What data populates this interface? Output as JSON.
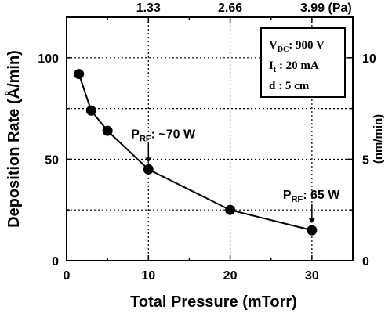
{
  "chart_data": {
    "type": "line",
    "xlabel": "Total Pressure (mTorr)",
    "ylabel": "Deposition Rate (Å/min)",
    "ylabel_right": "(nm/min)",
    "xlim": [
      0,
      35
    ],
    "ylim": [
      0,
      120
    ],
    "x_ticks": [
      0,
      10,
      20,
      30
    ],
    "y_ticks": [
      0,
      50,
      100
    ],
    "right_ticks": [
      0,
      5,
      10
    ],
    "top_ticks": [
      "1.33",
      "2.66",
      "3.99 (Pa)"
    ],
    "grid": true,
    "series": [
      {
        "x": [
          1.5,
          3,
          5,
          10,
          20,
          30
        ],
        "y": [
          92,
          74,
          64,
          45,
          25,
          15
        ]
      }
    ],
    "annotations": [
      {
        "pre": "P",
        "sub": "RF",
        "post": ": ~70 W",
        "x": 10,
        "y": 45
      },
      {
        "pre": "P",
        "sub": "RF",
        "post": ": 65 W",
        "x": 30,
        "y": 15
      }
    ],
    "legend_box": {
      "vdc_pre": "V",
      "vdc_sub": "DC",
      "vdc_post": ": 900 V",
      "it_pre": "I",
      "it_sub": "t",
      "it_post": " : 20 mA",
      "d": "d : 5 cm"
    }
  }
}
